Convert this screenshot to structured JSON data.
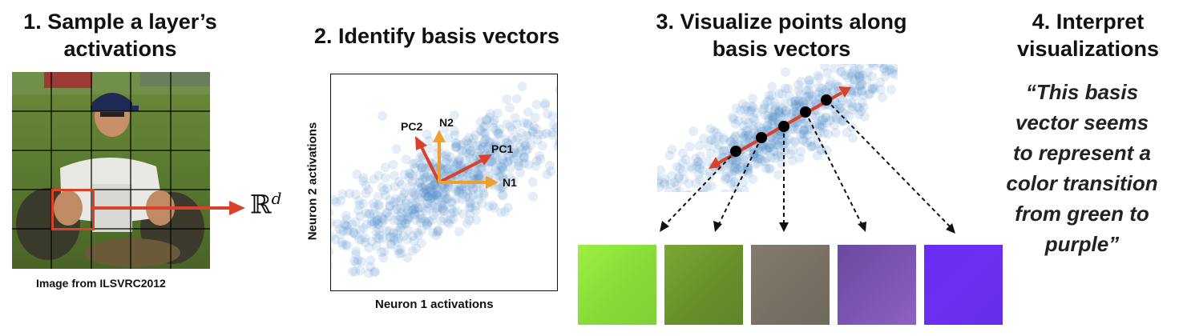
{
  "steps": [
    {
      "title_line1": "1. Sample a layer’s",
      "title_line2": "activations"
    },
    {
      "title_line1": "2. Identify basis vectors"
    },
    {
      "title_line1": "3. Visualize points along",
      "title_line2": "basis vectors"
    },
    {
      "title_line1": "4. Interpret",
      "title_line2": "visualizations"
    }
  ],
  "photo": {
    "caption": "Image from ILSVRC2012",
    "space_symbol": "ℝ",
    "space_exponent": "d"
  },
  "scatter": {
    "xlabel": "Neuron 1 activations",
    "ylabel": "Neuron 2 activations",
    "vectors": {
      "pc1": "PC1",
      "pc2": "PC2",
      "n1": "N1",
      "n2": "N2"
    }
  },
  "interpretation": {
    "quote_lines": [
      "“This basis",
      "vector seems",
      "to represent a",
      "color transition",
      "from green to",
      "purple”"
    ]
  },
  "colors": {
    "accent_red": "#d9412b",
    "accent_orange": "#f0a030",
    "point_blue": "#4a86c3",
    "patches": [
      "#8fe33a",
      "#6f9a2e",
      "#7a7266",
      "#7b54b2",
      "#6b2cf0"
    ]
  }
}
